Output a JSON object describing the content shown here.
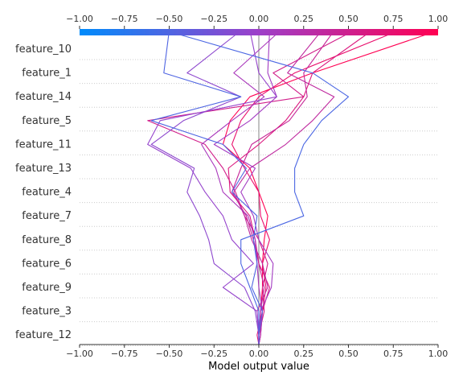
{
  "chart_data": {
    "type": "line",
    "xlabel": "Model output value",
    "xlim": [
      -1.0,
      1.0
    ],
    "x_ticks": [
      "−1.00",
      "−0.75",
      "−0.50",
      "−0.25",
      "0.00",
      "0.25",
      "0.50",
      "0.75",
      "1.00"
    ],
    "x_tick_values": [
      -1.0,
      -0.75,
      -0.5,
      -0.25,
      0.0,
      0.25,
      0.5,
      0.75,
      1.0
    ],
    "features": [
      "feature_10",
      "feature_1",
      "feature_14",
      "feature_5",
      "feature_11",
      "feature_13",
      "feature_4",
      "feature_7",
      "feature_8",
      "feature_6",
      "feature_9",
      "feature_3",
      "feature_12"
    ],
    "base_value": 0.0,
    "colorbar": {
      "min": -1.0,
      "max": 1.0,
      "low_color": "#008bfb",
      "mid_color": "#9d3fc9",
      "high_color": "#ff0052"
    },
    "grid": "dotted horizontal",
    "series": [
      {
        "output": 1.0,
        "values": [
          0,
          0.01,
          0.01,
          0.02,
          0.02,
          0.03,
          0.05,
          0.0,
          -0.05,
          -0.2,
          -0.16,
          -0.05,
          0.3,
          1.0
        ]
      },
      {
        "output": 0.78,
        "values": [
          0,
          0.01,
          0.02,
          0.04,
          0.02,
          0.06,
          0.01,
          0.0,
          -0.08,
          -0.15,
          -0.1,
          0.0,
          0.2,
          0.78
        ]
      },
      {
        "output": 0.53,
        "values": [
          0,
          0.0,
          0.03,
          0.02,
          0.05,
          0.0,
          -0.08,
          -0.13,
          -0.2,
          -0.3,
          -0.62,
          0.25,
          0.08,
          0.53
        ]
      },
      {
        "output": 0.63,
        "values": [
          0,
          -0.01,
          0.02,
          0.06,
          0.0,
          -0.02,
          -0.05,
          -0.16,
          -0.17,
          0.0,
          0.15,
          0.25,
          0.3,
          0.63
        ]
      },
      {
        "output": 0.42,
        "values": [
          0,
          0.0,
          0.01,
          0.03,
          0.0,
          -0.03,
          -0.07,
          -0.15,
          -0.1,
          -0.04,
          0.17,
          0.27,
          0.25,
          0.42
        ]
      },
      {
        "output": 0.35,
        "values": [
          0,
          0.0,
          -0.01,
          0.05,
          0.02,
          -0.04,
          -0.08,
          -0.14,
          -0.05,
          0.15,
          0.3,
          0.42,
          0.16,
          0.35
        ]
      },
      {
        "output": 0.12,
        "values": [
          0,
          0.01,
          0.02,
          0.0,
          -0.01,
          -0.02,
          -0.06,
          -0.2,
          -0.24,
          -0.32,
          -0.15,
          0.03,
          -0.14,
          0.12
        ]
      },
      {
        "output": 0.06,
        "values": [
          0,
          0.0,
          0.01,
          0.07,
          0.08,
          0.0,
          -0.03,
          -0.1,
          -0.02,
          -0.25,
          -0.05,
          0.1,
          0.05,
          0.06
        ]
      },
      {
        "output": -0.1,
        "values": [
          0,
          0.0,
          -0.02,
          -0.08,
          -0.25,
          -0.28,
          -0.33,
          -0.4,
          -0.36,
          -0.6,
          -0.42,
          -0.1,
          -0.4,
          -0.1
        ]
      },
      {
        "output": -0.05,
        "values": [
          0,
          0.0,
          -0.01,
          -0.2,
          -0.03,
          -0.15,
          -0.2,
          -0.3,
          -0.38,
          -0.62,
          -0.55,
          0.1,
          0.0,
          -0.05
        ]
      },
      {
        "output": -0.5,
        "values": [
          0,
          0.0,
          0.02,
          -0.04,
          -0.01,
          -0.03,
          -0.01,
          -0.15,
          -0.07,
          -0.2,
          -0.6,
          -0.1,
          -0.53,
          -0.5
        ]
      },
      {
        "output": -0.52,
        "values": [
          0,
          0.0,
          0.0,
          -0.05,
          -0.1,
          -0.1,
          0.25,
          0.2,
          0.2,
          0.25,
          0.35,
          0.5,
          0.3,
          -0.52
        ]
      }
    ]
  }
}
